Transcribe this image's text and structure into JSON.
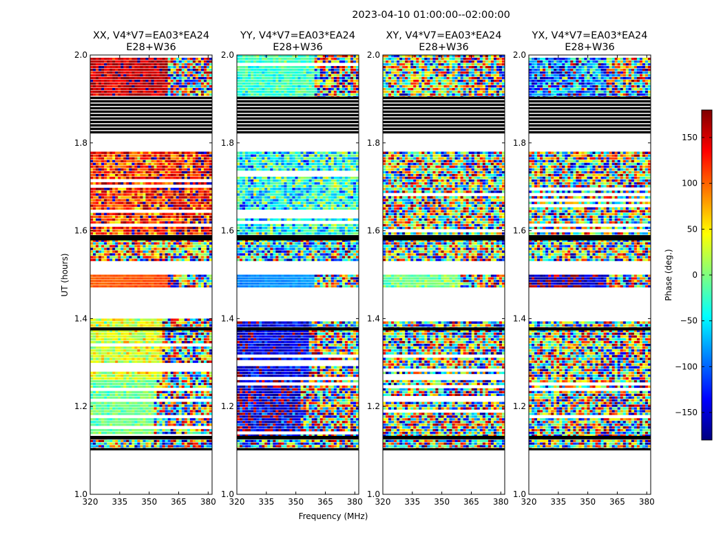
{
  "suptitle": "2023-04-10  01:00:00--02:00:00",
  "colors": {
    "flag": "#000000",
    "frame": "#000000",
    "background": "#ffffff"
  },
  "chart_data": {
    "type": "heatmap",
    "xlabel": "Frequency (MHz)",
    "ylabel": "UT (hours)",
    "xlim": [
      320,
      382
    ],
    "ylim": [
      1.0,
      2.0
    ],
    "xticks": [
      "320",
      "335",
      "350",
      "365",
      "380"
    ],
    "xtick_values": [
      320,
      335,
      350,
      365,
      380
    ],
    "yticks": [
      "1.0",
      "1.2",
      "1.4",
      "1.6",
      "1.8",
      "2.0"
    ],
    "ytick_values": [
      1.0,
      1.2,
      1.4,
      1.6,
      1.8,
      2.0
    ],
    "colorbar": {
      "label": "Phase (deg.)",
      "range": [
        -180,
        180
      ],
      "ticks": [
        "150",
        "100",
        "50",
        "0",
        "−50",
        "−100",
        "−150"
      ],
      "tick_values": [
        150,
        100,
        50,
        0,
        -50,
        -100,
        -150
      ],
      "colormap": "jet"
    },
    "flagged_time_ranges_hours": [
      [
        1.1,
        1.105
      ],
      [
        1.125,
        1.133
      ],
      [
        1.373,
        1.38
      ],
      [
        1.578,
        1.59
      ],
      [
        1.825,
        1.905
      ]
    ],
    "empty_time_ranges_hours": [
      [
        1.0,
        1.1
      ],
      [
        1.4,
        1.468
      ],
      [
        1.5,
        1.53
      ],
      [
        1.78,
        1.825
      ]
    ],
    "rfi_edge_mhz": [
      [
        1.1,
        1.26,
        353
      ],
      [
        1.26,
        1.4,
        357
      ],
      [
        1.47,
        1.5,
        360
      ],
      [
        1.9,
        2.0,
        360
      ]
    ],
    "panels": [
      {
        "title_line1": "XX, V4*V7=EA03*EA24",
        "title_line2": "E28+W36",
        "pol": "XX",
        "mean_phase_deg": [
          [
            1.1,
            1.13,
            -20
          ],
          [
            1.13,
            1.26,
            -10
          ],
          [
            1.26,
            1.4,
            25
          ],
          [
            1.47,
            1.5,
            100
          ],
          [
            1.53,
            1.58,
            60
          ],
          [
            1.59,
            1.78,
            115
          ],
          [
            1.9,
            2.0,
            150
          ]
        ],
        "phase_scatter_deg": [
          [
            1.1,
            1.13,
            150
          ],
          [
            1.13,
            1.26,
            25
          ],
          [
            1.26,
            1.4,
            40
          ],
          [
            1.47,
            1.5,
            8
          ],
          [
            1.53,
            1.58,
            140
          ],
          [
            1.59,
            1.78,
            70
          ],
          [
            1.9,
            2.0,
            30
          ]
        ]
      },
      {
        "title_line1": "YY, V4*V7=EA03*EA24",
        "title_line2": "E28+W36",
        "pol": "YY",
        "mean_phase_deg": [
          [
            1.1,
            1.13,
            -60
          ],
          [
            1.13,
            1.26,
            -160
          ],
          [
            1.26,
            1.4,
            -150
          ],
          [
            1.47,
            1.5,
            -90
          ],
          [
            1.53,
            1.58,
            -60
          ],
          [
            1.59,
            1.78,
            -45
          ],
          [
            1.9,
            2.0,
            -30
          ]
        ],
        "phase_scatter_deg": [
          [
            1.1,
            1.13,
            150
          ],
          [
            1.13,
            1.26,
            60
          ],
          [
            1.26,
            1.4,
            40
          ],
          [
            1.47,
            1.5,
            8
          ],
          [
            1.53,
            1.58,
            140
          ],
          [
            1.59,
            1.78,
            70
          ],
          [
            1.9,
            2.0,
            30
          ]
        ]
      },
      {
        "title_line1": "XY, V4*V7=EA03*EA24",
        "title_line2": "E28+W36",
        "pol": "XY",
        "mean_phase_deg": [
          [
            1.1,
            1.13,
            0
          ],
          [
            1.13,
            1.26,
            0
          ],
          [
            1.26,
            1.4,
            0
          ],
          [
            1.47,
            1.5,
            -10
          ],
          [
            1.53,
            1.58,
            0
          ],
          [
            1.59,
            1.78,
            0
          ],
          [
            1.9,
            2.0,
            20
          ]
        ],
        "phase_scatter_deg": [
          [
            1.1,
            1.13,
            180
          ],
          [
            1.13,
            1.26,
            180
          ],
          [
            1.26,
            1.4,
            180
          ],
          [
            1.47,
            1.5,
            30
          ],
          [
            1.53,
            1.58,
            180
          ],
          [
            1.59,
            1.78,
            180
          ],
          [
            1.9,
            2.0,
            150
          ]
        ]
      },
      {
        "title_line1": "YX, V4*V7=EA03*EA24",
        "title_line2": "E28+W36",
        "pol": "YX",
        "mean_phase_deg": [
          [
            1.1,
            1.13,
            0
          ],
          [
            1.13,
            1.26,
            0
          ],
          [
            1.26,
            1.4,
            0
          ],
          [
            1.47,
            1.5,
            -170
          ],
          [
            1.53,
            1.58,
            0
          ],
          [
            1.59,
            1.78,
            0
          ],
          [
            1.9,
            2.0,
            -100
          ]
        ],
        "phase_scatter_deg": [
          [
            1.1,
            1.13,
            180
          ],
          [
            1.13,
            1.26,
            180
          ],
          [
            1.26,
            1.4,
            180
          ],
          [
            1.47,
            1.5,
            40
          ],
          [
            1.53,
            1.58,
            180
          ],
          [
            1.59,
            1.78,
            180
          ],
          [
            1.9,
            2.0,
            100
          ]
        ]
      }
    ]
  }
}
